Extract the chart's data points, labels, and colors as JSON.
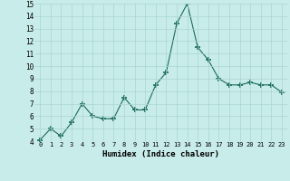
{
  "x": [
    0,
    1,
    2,
    3,
    4,
    5,
    6,
    7,
    8,
    9,
    10,
    11,
    12,
    13,
    14,
    15,
    16,
    17,
    18,
    19,
    20,
    21,
    22,
    23
  ],
  "y": [
    4.1,
    5.0,
    4.4,
    5.5,
    7.0,
    6.0,
    5.8,
    5.8,
    7.5,
    6.5,
    6.5,
    8.5,
    9.5,
    13.4,
    15.0,
    11.5,
    10.5,
    9.0,
    8.5,
    8.5,
    8.7,
    8.5,
    8.5,
    7.9
  ],
  "xlabel": "Humidex (Indice chaleur)",
  "ylim": [
    4,
    15
  ],
  "xlim": [
    -0.5,
    23.5
  ],
  "yticks": [
    4,
    5,
    6,
    7,
    8,
    9,
    10,
    11,
    12,
    13,
    14,
    15
  ],
  "xtick_labels": [
    "0",
    "1",
    "2",
    "3",
    "4",
    "5",
    "6",
    "7",
    "8",
    "9",
    "10",
    "11",
    "12",
    "13",
    "14",
    "15",
    "16",
    "17",
    "18",
    "19",
    "20",
    "21",
    "22",
    "23"
  ],
  "line_color": "#1a6b5a",
  "marker": "+",
  "bg_color": "#c8ecea",
  "grid_color": "#aad4d0"
}
